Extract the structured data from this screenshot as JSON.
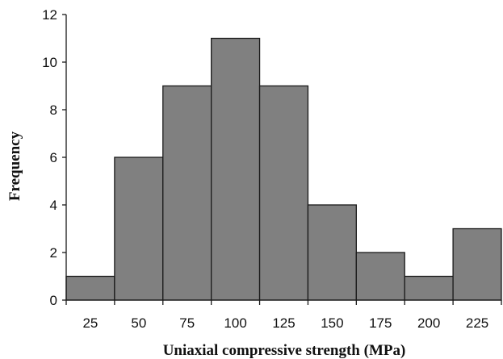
{
  "chart_data": {
    "type": "bar",
    "title": "",
    "xlabel": "Uniaxial compressive strength (MPa)",
    "ylabel": "Frequency",
    "categories": [
      "25",
      "50",
      "75",
      "100",
      "125",
      "150",
      "175",
      "200",
      "225"
    ],
    "values": [
      1,
      6,
      9,
      11,
      9,
      4,
      2,
      1,
      3
    ],
    "ylim": [
      0,
      12
    ],
    "yticks": [
      "0",
      "2",
      "4",
      "6",
      "8",
      "10",
      "12"
    ],
    "grid": false,
    "legend": "none",
    "colors": {
      "bar_fill": "#808080",
      "bar_stroke": "#1a1a1a",
      "axis": "#1a1a1a"
    }
  }
}
